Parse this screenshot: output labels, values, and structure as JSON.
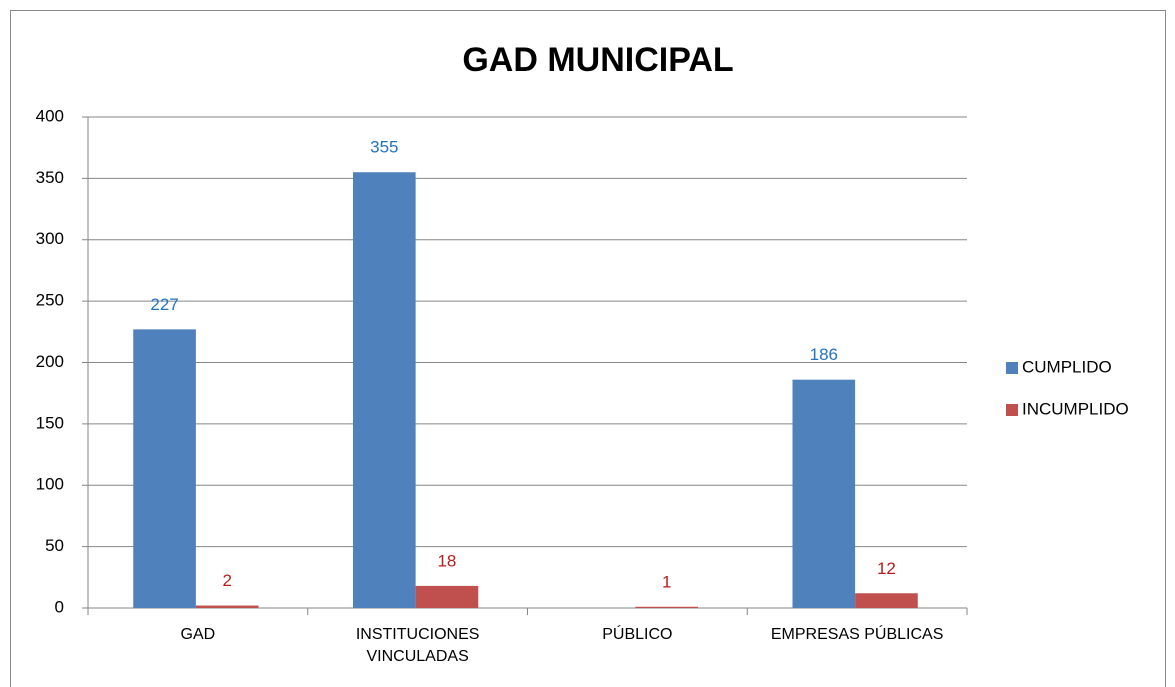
{
  "chart_data": {
    "type": "bar",
    "title": "GAD MUNICIPAL",
    "categories": [
      "GAD",
      "INSTITUCIONES VINCULADAS",
      "PÚBLICO",
      "EMPRESAS PÚBLICAS"
    ],
    "series": [
      {
        "name": "CUMPLIDO",
        "color": "#4f81bd",
        "label_color": "#2373c0",
        "values": [
          227,
          355,
          null,
          186
        ]
      },
      {
        "name": "INCUMPLIDO",
        "color": "#c0504d",
        "label_color": "#b81c1c",
        "values": [
          2,
          18,
          1,
          12
        ]
      }
    ],
    "ylim": [
      0,
      400
    ],
    "yticks": [
      0,
      50,
      100,
      150,
      200,
      250,
      300,
      350,
      400
    ],
    "grid": true,
    "legend": "right"
  }
}
